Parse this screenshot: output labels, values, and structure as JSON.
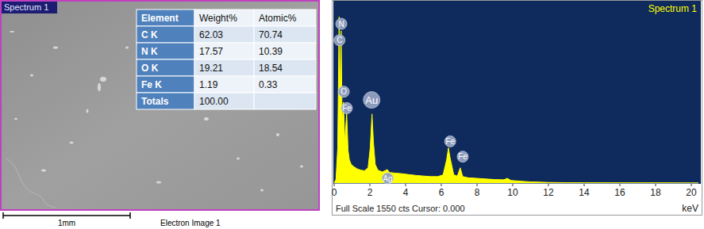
{
  "electron_image": {
    "label": "Spectrum 1",
    "scale_bar": "1mm",
    "caption": "Electron Image 1"
  },
  "table": {
    "header": [
      "Element",
      "Weight%",
      "Atomic%"
    ],
    "rows": [
      [
        "C K",
        "62.03",
        "70.74"
      ],
      [
        "N K",
        "17.57",
        "10.39"
      ],
      [
        "O K",
        "19.21",
        "18.54"
      ],
      [
        "Fe K",
        "1.19",
        "0.33"
      ],
      [
        "Totals",
        "100.00"
      ]
    ]
  },
  "chart_data": {
    "type": "area",
    "title": "Spectrum 1",
    "x_label": "keV",
    "color": "#ffff00",
    "x": [
      0,
      0.1,
      0.2,
      0.28,
      0.33,
      0.39,
      0.45,
      0.52,
      0.6,
      0.7,
      0.78,
      0.85,
      0.95,
      1.1,
      1.3,
      1.5,
      1.7,
      1.9,
      2.02,
      2.12,
      2.2,
      2.3,
      2.45,
      2.7,
      2.98,
      3.1,
      3.4,
      3.8,
      4.2,
      4.6,
      5.0,
      5.4,
      5.8,
      6.1,
      6.3,
      6.4,
      6.5,
      6.7,
      6.9,
      7.06,
      7.2,
      7.5,
      8.0,
      8.5,
      9.0,
      9.5,
      9.7,
      9.9,
      10.5,
      11.0,
      11.5,
      12.0,
      13.0,
      14.0,
      16.0,
      18.0,
      20.4
    ],
    "values": [
      0,
      30,
      300,
      1420,
      700,
      1300,
      500,
      690,
      350,
      600,
      280,
      200,
      160,
      140,
      120,
      110,
      105,
      130,
      300,
      590,
      350,
      160,
      110,
      95,
      115,
      90,
      85,
      80,
      72,
      65,
      60,
      55,
      55,
      70,
      200,
      300,
      210,
      70,
      60,
      130,
      55,
      45,
      40,
      35,
      30,
      28,
      40,
      22,
      15,
      10,
      8,
      5,
      3,
      2,
      1,
      1,
      0
    ],
    "xlim": [
      0,
      20.4
    ],
    "ylim": [
      0,
      1550
    ],
    "xticks": [
      0,
      2,
      4,
      6,
      8,
      10,
      12,
      14,
      16,
      18,
      20
    ],
    "tick_labels": "x",
    "grid": false,
    "annotations": [
      {
        "text": "Full Scale 1550 cts Cursor: 0.000"
      },
      {
        "text": "N",
        "x": 0.4,
        "y": 1360
      },
      {
        "text": "C",
        "x": 0.3,
        "y": 1220
      },
      {
        "text": "O",
        "x": 0.54,
        "y": 780
      },
      {
        "text": "Fe",
        "x": 0.71,
        "y": 640
      },
      {
        "text": "Au",
        "x": 2.1,
        "y": 710
      },
      {
        "text": "Ag",
        "x": 3.0,
        "y": 40
      },
      {
        "text": "Fe",
        "x": 6.5,
        "y": 356
      },
      {
        "text": "Fe",
        "x": 7.2,
        "y": 225
      }
    ]
  }
}
